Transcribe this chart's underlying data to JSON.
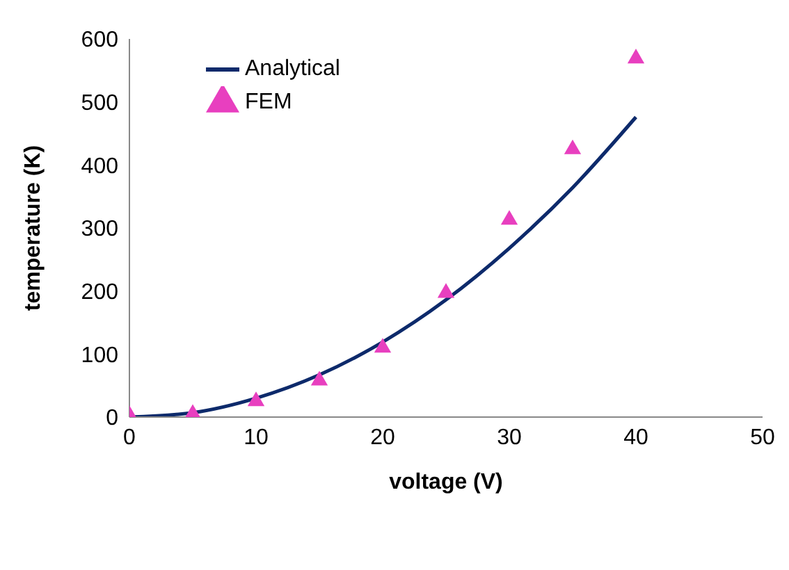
{
  "chart_data": {
    "type": "line",
    "xlabel": "voltage (V)",
    "ylabel": "temperature (K)",
    "xlim": [
      0,
      50
    ],
    "xticks": [
      0,
      10,
      20,
      30,
      40,
      50
    ],
    "ylim": [
      0,
      600
    ],
    "yticks": [
      0,
      100,
      200,
      300,
      400,
      500,
      600
    ],
    "grid": false,
    "legend": "top left",
    "series": [
      {
        "name": "Analytical",
        "marker": "none",
        "color": "#0d2a6b",
        "x": [
          0,
          5,
          10,
          15,
          20,
          25,
          30,
          35,
          40
        ],
        "values": [
          0,
          7,
          30,
          67,
          119,
          186,
          268,
          364,
          476
        ]
      },
      {
        "name": "FEM",
        "type": "scatter",
        "marker": "triangle",
        "color": "#e83fbf",
        "x": [
          0,
          5,
          10,
          15,
          20,
          25,
          30,
          35,
          40
        ],
        "values": [
          3,
          5,
          25,
          58,
          110,
          197,
          313,
          425,
          569
        ]
      }
    ]
  }
}
